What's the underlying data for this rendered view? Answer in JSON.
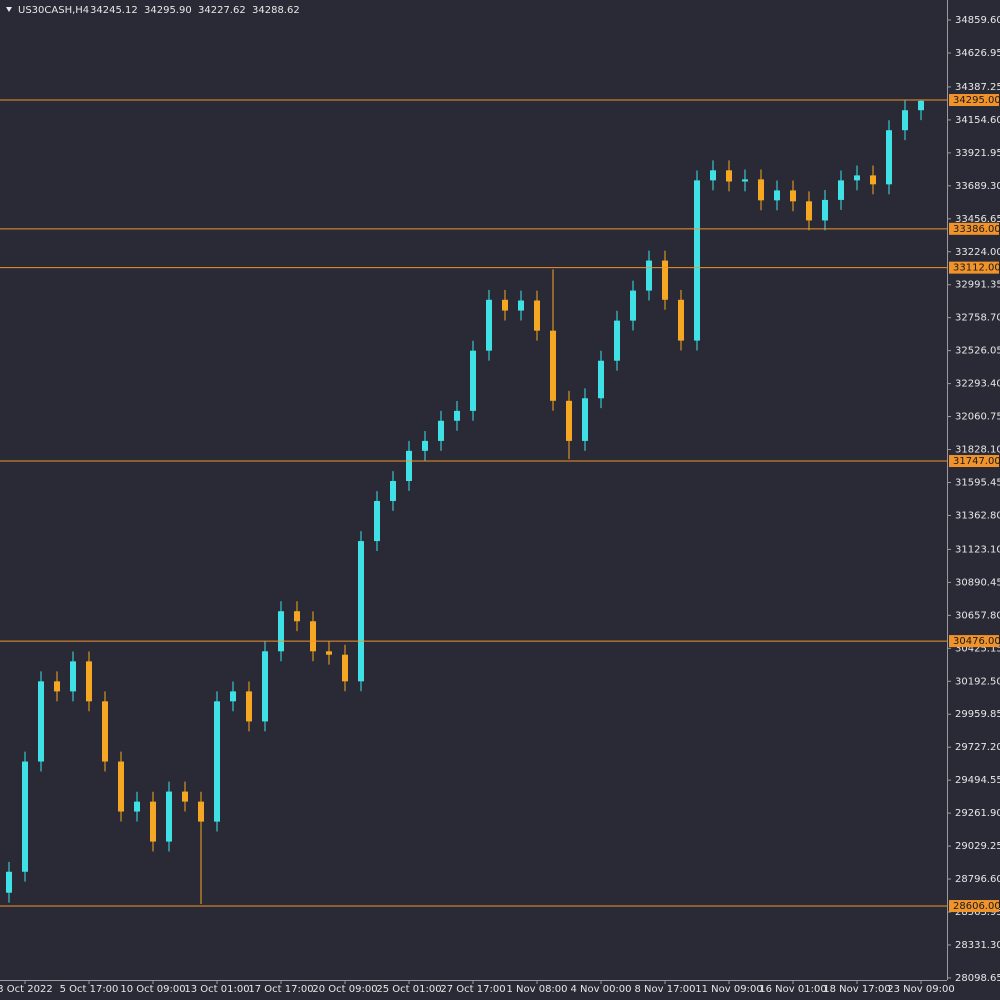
{
  "chart_data": {
    "type": "candlestick",
    "symbol": "US30CASH,H4",
    "header_values": [
      "34245.12",
      "34295.90",
      "34227.62",
      "34288.62"
    ],
    "up_color": "#3fe0e6",
    "down_color": "#f5a623",
    "level_color": "#f0932b",
    "categories": [
      null,
      "3 Oct 2022",
      null,
      null,
      null,
      "5 Oct 17:00",
      null,
      null,
      null,
      "10 Oct 09:00",
      null,
      null,
      null,
      "13 Oct 01:00",
      null,
      null,
      null,
      "17 Oct 17:00",
      null,
      null,
      null,
      "20 Oct 09:00",
      null,
      null,
      null,
      "25 Oct 01:00",
      null,
      null,
      null,
      "27 Oct 17:00",
      null,
      null,
      null,
      "1 Nov 08:00",
      null,
      null,
      null,
      "4 Nov 00:00",
      null,
      null,
      null,
      "8 Nov 17:00",
      null,
      null,
      null,
      "11 Nov 09:00",
      null,
      null,
      null,
      "16 Nov 01:00",
      null,
      null,
      null,
      "18 Nov 17:00",
      null,
      null,
      null,
      "23 Nov 09:00"
    ],
    "open": [
      28700,
      28848,
      29626,
      30192,
      30121,
      30333,
      30051,
      29626,
      29273,
      29343,
      29061,
      29414,
      29343,
      29202,
      30051,
      30121,
      29909,
      30404,
      30687,
      30616,
      30404,
      30380,
      30192,
      31182,
      31465,
      31606,
      31819,
      31889,
      32031,
      32101,
      32526,
      32885,
      32809,
      32880,
      32667,
      32172,
      31889,
      32190,
      32455,
      32738,
      32950,
      33162,
      32885,
      32597,
      33728,
      33799,
      33720,
      33735,
      33587,
      33657,
      33580,
      33445,
      33590,
      33728,
      33763,
      33700,
      34082,
      34223
    ],
    "high": [
      28918,
      29696,
      30262,
      30262,
      30403,
      30403,
      30121,
      29696,
      29413,
      29413,
      29484,
      29484,
      29413,
      30121,
      30191,
      30191,
      30474,
      30757,
      30757,
      30686,
      30474,
      30450,
      31252,
      31535,
      31676,
      31889,
      31959,
      32101,
      32171,
      32596,
      32955,
      32955,
      32950,
      32950,
      33100,
      32242,
      32260,
      32525,
      32808,
      33020,
      33232,
      33232,
      32955,
      33798,
      33869,
      33869,
      33805,
      33805,
      33727,
      33727,
      33650,
      33660,
      33798,
      33833,
      33833,
      34152,
      34293,
      34296
    ],
    "low": [
      28630,
      28778,
      29556,
      30051,
      30051,
      29981,
      29556,
      29203,
      29203,
      28991,
      28991,
      29273,
      28620,
      29132,
      29981,
      29839,
      29839,
      30334,
      30546,
      30334,
      30310,
      30122,
      30122,
      31112,
      31395,
      31536,
      31749,
      31819,
      31961,
      32031,
      32456,
      32739,
      32739,
      32597,
      32102,
      31760,
      31819,
      32120,
      32385,
      32668,
      32880,
      32815,
      32527,
      32527,
      33658,
      33650,
      33650,
      33517,
      33517,
      33510,
      33375,
      33375,
      33520,
      33658,
      33630,
      33630,
      34012,
      34153
    ],
    "close": [
      28848,
      29626,
      30192,
      30121,
      30333,
      30051,
      29626,
      29273,
      29343,
      29061,
      29414,
      29343,
      29202,
      30051,
      30121,
      29909,
      30404,
      30687,
      30616,
      30404,
      30380,
      30192,
      31182,
      31465,
      31606,
      31819,
      31889,
      32031,
      32101,
      32526,
      32885,
      32809,
      32880,
      32667,
      32172,
      31889,
      32190,
      32455,
      32738,
      32950,
      33162,
      32885,
      32597,
      33728,
      33799,
      33720,
      33735,
      33587,
      33657,
      33580,
      33445,
      33590,
      33728,
      33763,
      33700,
      34082,
      34223,
      34289
    ],
    "ylim": [
      28084,
      35001
    ],
    "yticks": [
      {
        "value": 34859.6,
        "label": "34859.60"
      },
      34626.95,
      34387.25,
      {
        "value": 34154.6,
        "label": "34154.60"
      },
      33921.95,
      {
        "value": 33689.3,
        "label": "33689.30"
      },
      33456.65,
      {
        "value": 33224,
        "label": "33224.00"
      },
      32991.35,
      {
        "value": 32758.7,
        "label": "32758.70"
      },
      32526.05,
      {
        "value": 32293.4,
        "label": "32293.40"
      },
      32060.75,
      {
        "value": 31828.1,
        "label": "31828.10"
      },
      31595.45,
      {
        "value": 31362.8,
        "label": "31362.80"
      },
      {
        "value": 31123.1,
        "label": "31123.10"
      },
      30890.45,
      {
        "value": 30657.8,
        "label": "30657.80"
      },
      30425.15,
      {
        "value": 30192.5,
        "label": "30192.50"
      },
      29959.85,
      {
        "value": 29727.2,
        "label": "29727.20"
      },
      29494.55,
      {
        "value": 29261.9,
        "label": "29261.90"
      },
      29029.25,
      {
        "value": 28796.6,
        "label": "28796.60"
      },
      28563.95,
      {
        "value": 28331.3,
        "label": "28331.30"
      },
      28098.65
    ],
    "levels": [
      {
        "value": 34295,
        "label": "34295.00"
      },
      {
        "value": 33386,
        "label": "33386.00"
      },
      {
        "value": 33112,
        "label": "33112.00"
      },
      {
        "value": 31747,
        "label": "31747.00"
      },
      {
        "value": 30476,
        "label": "30476.00"
      },
      {
        "value": 28606,
        "label": "28606.00"
      }
    ]
  }
}
